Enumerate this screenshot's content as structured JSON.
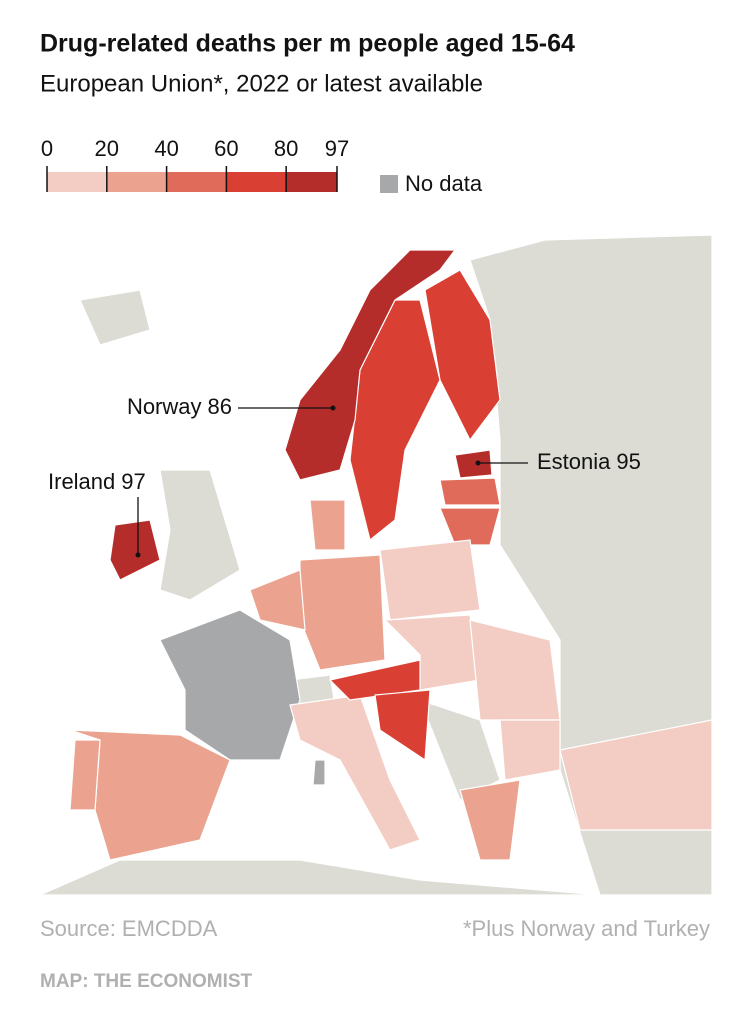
{
  "header": {
    "title": "Drug-related deaths per m people aged 15-64",
    "subtitle": "European Union*, 2022 or latest available"
  },
  "legend": {
    "ticks": [
      0,
      20,
      40,
      60,
      80,
      97
    ],
    "colors": [
      "#f3cdc3",
      "#eba28f",
      "#e06b5a",
      "#d93f33",
      "#b52d2a"
    ],
    "no_data_label": "No data",
    "no_data_color": "#a7a8aa"
  },
  "annotations": [
    {
      "name": "Norway",
      "value": 86
    },
    {
      "name": "Ireland",
      "value": 97
    },
    {
      "name": "Estonia",
      "value": 95
    }
  ],
  "footer": {
    "source": "Source: EMCDDA",
    "note": "*Plus Norway and Turkey",
    "credit": "MAP: THE ECONOMIST"
  }
}
